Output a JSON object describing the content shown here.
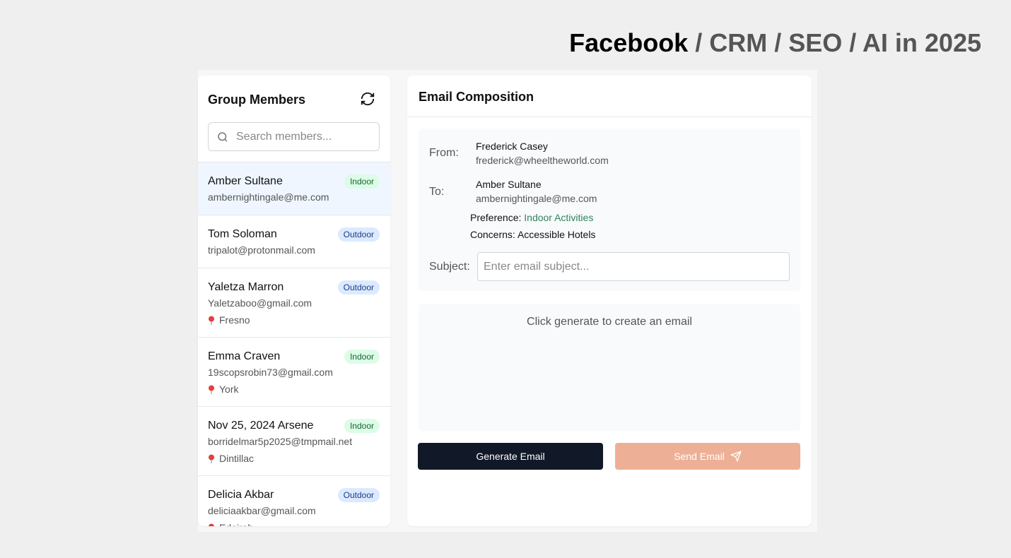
{
  "header": {
    "title_bold": "Facebook",
    "title_rest": "/ CRM / SEO / AI in 2025"
  },
  "members": {
    "title": "Group Members",
    "search_placeholder": "Search members...",
    "items": [
      {
        "name": "Amber Sultane",
        "email": "ambernightingale@me.com",
        "tag": "Indoor",
        "badge_color": "#dcfce7",
        "selected": true
      },
      {
        "name": "Tom Soloman",
        "email": "tripalot@protonmail.com",
        "tag": "Outdoor",
        "badge_color": "#dbeafe"
      },
      {
        "name": "Yaletza Marron",
        "email": "Yaletzaboo@gmail.com",
        "tag": "Outdoor",
        "badge_color": "#dbeafe",
        "location": "Fresno"
      },
      {
        "name": "Emma Craven",
        "email": "19scopsrobin73@gmail.com",
        "tag": "Indoor",
        "badge_color": "#dcfce7",
        "location": "York"
      },
      {
        "name": "Nov 25, 2024 Arsene",
        "email": "borridelmar5p2025@tmpmail.net",
        "tag": "Indoor",
        "badge_color": "#dcfce7",
        "location": "Dintillac"
      },
      {
        "name": "Delicia Akbar",
        "email": "deliciaakbar@gmail.com",
        "tag": "Outdoor",
        "badge_color": "#dbeafe",
        "location": "Edeirah"
      }
    ]
  },
  "composer": {
    "title": "Email Composition",
    "from_label": "From:",
    "from_name": "Frederick Casey",
    "from_email": "frederick@wheeltheworld.com",
    "to_label": "To:",
    "to_name": "Amber Sultane",
    "to_email": "ambernightingale@me.com",
    "preference_label": "Preference:",
    "preference_value": "Indoor Activities",
    "concerns_label": "Concerns:",
    "concerns_value": "Accessible Hotels",
    "subject_label": "Subject:",
    "subject_placeholder": "Enter email subject...",
    "output_placeholder": "Click generate to create an email",
    "generate_button": "Generate Email",
    "send_button": "Send Email"
  }
}
